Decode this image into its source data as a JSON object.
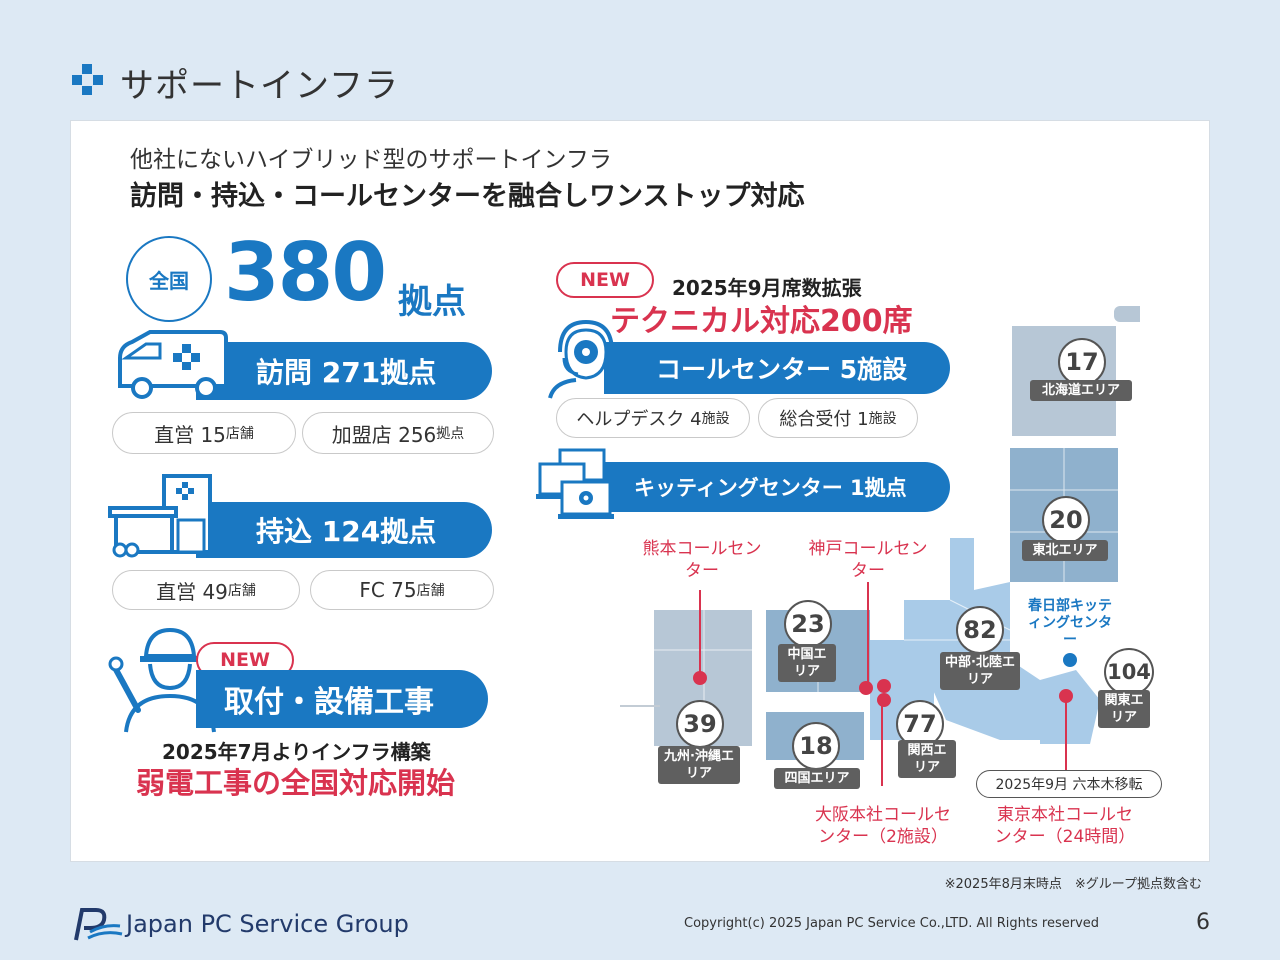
{
  "header": {
    "title": "サポートインフラ"
  },
  "intro": {
    "line1": "他社にないハイブリッド型のサポートインフラ",
    "line2": "訪問・持込・コールセンターを融合しワンストップ対応"
  },
  "total": {
    "badge": "全国",
    "number": "380",
    "unit": "拠点"
  },
  "visit": {
    "label": "訪問 271拠点",
    "pill1": {
      "main": "直営 15",
      "unit": "店舗"
    },
    "pill2": {
      "main": "加盟店 256",
      "unit": "拠点"
    }
  },
  "carry": {
    "label": "持込 124拠点",
    "pill1": {
      "main": "直営 49",
      "unit": "店舗"
    },
    "pill2": {
      "main": "FC 75",
      "unit": "店舗"
    }
  },
  "install": {
    "new_badge": "NEW",
    "label": "取付・設備工事",
    "line1": "2025年7月よりインフラ構築",
    "line2": "弱電工事の全国対応開始"
  },
  "callcenter": {
    "new_badge": "NEW",
    "expand": "2025年9月席数拡張",
    "tech": "テクニカル対応200席",
    "label": "コールセンター 5施設",
    "pill1": {
      "main": "ヘルプデスク 4",
      "unit": "施設"
    },
    "pill2": {
      "main": "総合受付 1",
      "unit": "施設"
    }
  },
  "kitting": {
    "label": "キッティングセンター 1拠点"
  },
  "map": {
    "areas": [
      {
        "num": "17",
        "label": "北海道エリア"
      },
      {
        "num": "20",
        "label": "東北エリア"
      },
      {
        "num": "82",
        "label": "中部·北陸エリア"
      },
      {
        "num": "104",
        "label": "関東エリア"
      },
      {
        "num": "23",
        "label": "中国エリア"
      },
      {
        "num": "77",
        "label": "関西エリア"
      },
      {
        "num": "18",
        "label": "四国エリア"
      },
      {
        "num": "39",
        "label": "九州·沖縄エリア"
      }
    ],
    "kumamoto": "熊本コールセンター",
    "kobe": "神戸コールセンター",
    "kasukabe": "春日部キッティングセンター",
    "osaka": "大阪本社コールセンター（2施設）",
    "tokyo": "東京本社コールセンター（24時間）",
    "move": "2025年9月 六本木移転"
  },
  "footer": {
    "note": "※2025年8月末時点　※グループ拠点数含む",
    "brand": "Japan PC Service Group",
    "copyright": "Copyright(c) 2025 Japan PC Service Co.,LTD. All Rights reserved",
    "page": "6"
  },
  "colors": {
    "accent": "#1a78c2",
    "red": "#d9334f",
    "map_light": "#a9cbe8",
    "map_mid": "#8fb1cd"
  }
}
